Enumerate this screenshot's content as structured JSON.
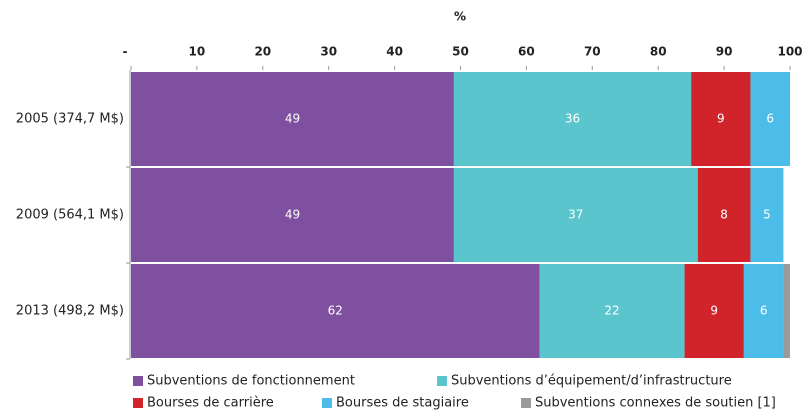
{
  "chart_data": {
    "type": "stacked_barh",
    "xlabel": "%",
    "categories": [
      "2005 (374,7 M$)",
      "2009 (564,1 M$)",
      "2013 (498,2 M$)"
    ],
    "series": [
      {
        "name": "Subventions de fonctionnement",
        "color": "#7e509f",
        "values": [
          49,
          49,
          62
        ]
      },
      {
        "name": "Subventions d’équipement/d’infrastructure",
        "color": "#5ac5cc",
        "values": [
          36,
          37,
          22
        ]
      },
      {
        "name": "Bourses de carrière",
        "color": "#d1232a",
        "values": [
          9,
          8,
          9
        ]
      },
      {
        "name": "Bourses de stagiaire",
        "color": "#4cbde8",
        "values": [
          6,
          5,
          6
        ]
      },
      {
        "name": "Subventions connexes de soutien [1]",
        "color": "#9a9a9a",
        "values": [
          0,
          0,
          1
        ]
      }
    ],
    "xlim": [
      0,
      100
    ],
    "xticks": [
      {
        "value": 0,
        "label": "-"
      },
      10,
      20,
      30,
      40,
      50,
      60,
      70,
      80,
      90,
      100
    ]
  }
}
